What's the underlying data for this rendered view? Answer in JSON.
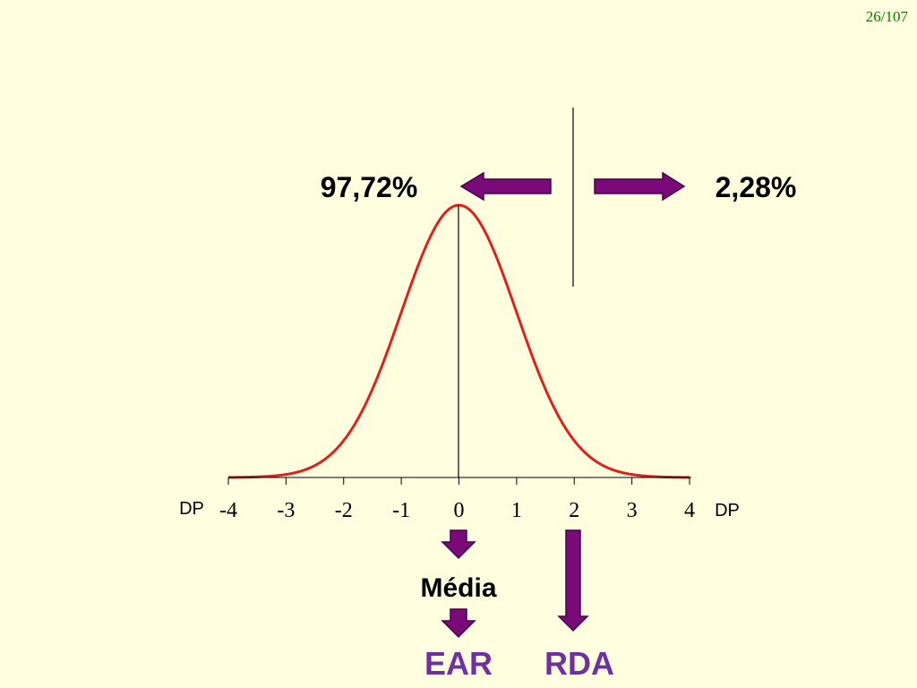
{
  "slide": {
    "page_number": "26/107"
  },
  "labels": {
    "left_percent": "97,72%",
    "right_percent": "2,28%",
    "dp_left": "DP",
    "dp_right": "DP",
    "media": "Média",
    "ear": "EAR",
    "rda": "RDA"
  },
  "colors": {
    "background": "#FFFFE0",
    "curve": "#E0201C",
    "arrow": "#7A0A7A",
    "ear_rda_text": "#7030A0",
    "page_number": "#008000",
    "axis": "#000000"
  },
  "chart_data": {
    "type": "line",
    "title": "",
    "xlabel": "DP",
    "ylabel": "",
    "xlim": [
      -4,
      4
    ],
    "x_ticks": [
      "-4",
      "-3",
      "-2",
      "-1",
      "0",
      "1",
      "2",
      "3",
      "4"
    ],
    "series": [
      {
        "distribution": "normal",
        "mean": 0,
        "sd": 1
      }
    ],
    "annotations": [
      {
        "x": 0,
        "label": "Média"
      },
      {
        "x": 0,
        "label": "EAR"
      },
      {
        "x": 2,
        "label": "RDA"
      },
      {
        "x": 2,
        "left_area": "97,72%",
        "right_area": "2,28%"
      }
    ]
  }
}
